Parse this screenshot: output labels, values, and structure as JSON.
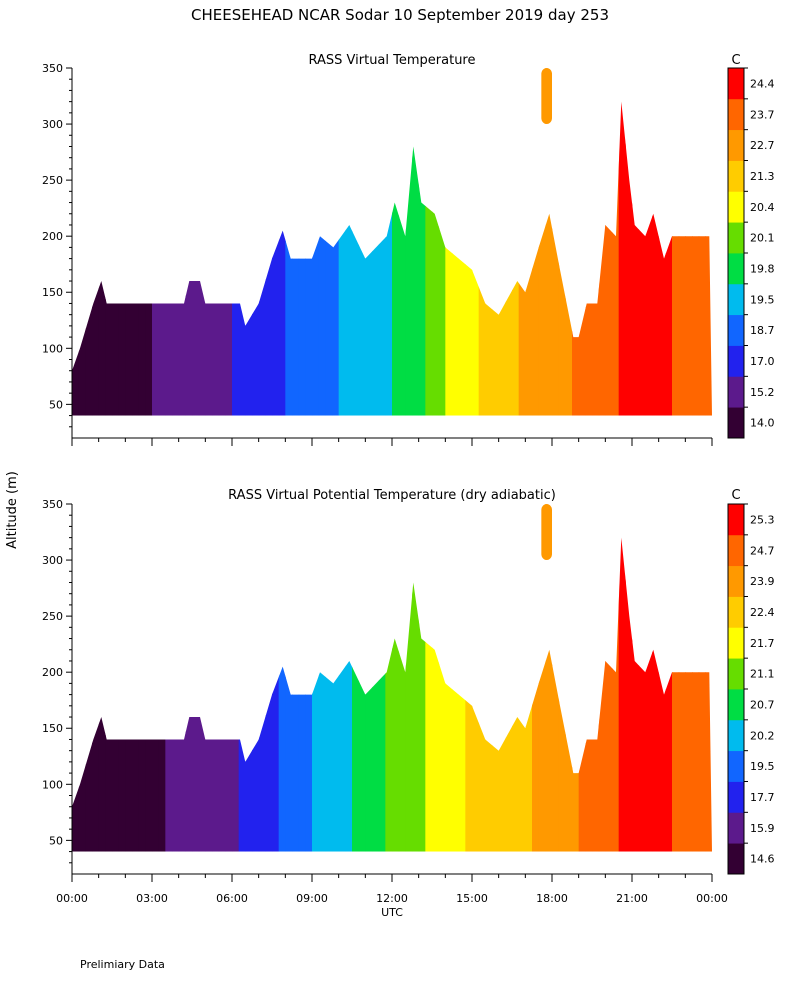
{
  "title": "CHEESEHEAD  NCAR Sodar  10 September 2019  day 253",
  "y_axis_label": "Altitude (m)",
  "footnote": "Prelimiary Data",
  "colors": [
    "#330033",
    "#5c1a8c",
    "#2222ee",
    "#1166ff",
    "#00bbee",
    "#00dd44",
    "#66dd00",
    "#ffff00",
    "#ffcc00",
    "#ff9900",
    "#ff6600",
    "#ff0000"
  ],
  "chart_data": [
    {
      "type": "heatmap",
      "title": "RASS Virtual Temperature",
      "xlabel": "UTC",
      "ylabel": "Altitude (m)",
      "colorbar_unit": "C",
      "colorbar_ticks": [
        14.0,
        15.2,
        17.0,
        18.7,
        19.5,
        19.8,
        20.1,
        20.4,
        21.3,
        22.7,
        23.7,
        24.4
      ],
      "colorbar_labels": [
        "14.0",
        "15.2",
        "17.0",
        "18.7",
        "19.5",
        "19.8",
        "20.1",
        "20.4",
        "21.3",
        "22.7",
        "23.7",
        "24.4"
      ],
      "x_ticks_hours": [
        0,
        3,
        6,
        9,
        12,
        15,
        18,
        21,
        24
      ],
      "y_ticks": [
        50,
        100,
        150,
        200,
        250,
        300,
        350
      ],
      "xlim_hours": [
        0,
        24
      ],
      "ylim": [
        20,
        350
      ],
      "lowest_gate_m": 40,
      "top_profile": [
        [
          0,
          80
        ],
        [
          0.3,
          100
        ],
        [
          0.8,
          140
        ],
        [
          1.1,
          160
        ],
        [
          1.3,
          140
        ],
        [
          4.2,
          140
        ],
        [
          4.4,
          160
        ],
        [
          4.8,
          160
        ],
        [
          5.0,
          140
        ],
        [
          6.3,
          140
        ],
        [
          6.5,
          120
        ],
        [
          7.0,
          140
        ],
        [
          7.5,
          180
        ],
        [
          7.9,
          205
        ],
        [
          8.2,
          180
        ],
        [
          9.0,
          180
        ],
        [
          9.3,
          200
        ],
        [
          9.8,
          190
        ],
        [
          10.4,
          210
        ],
        [
          11.0,
          180
        ],
        [
          11.8,
          200
        ],
        [
          12.1,
          230
        ],
        [
          12.5,
          200
        ],
        [
          12.8,
          280
        ],
        [
          13.1,
          230
        ],
        [
          13.6,
          220
        ],
        [
          14.0,
          190
        ],
        [
          14.5,
          180
        ],
        [
          15.0,
          170
        ],
        [
          15.5,
          140
        ],
        [
          16.0,
          130
        ],
        [
          16.7,
          160
        ],
        [
          17.0,
          150
        ],
        [
          17.5,
          190
        ],
        [
          17.9,
          220
        ],
        [
          18.3,
          170
        ],
        [
          18.8,
          110
        ],
        [
          19.0,
          110
        ],
        [
          19.3,
          140
        ],
        [
          19.7,
          140
        ],
        [
          20.0,
          210
        ],
        [
          20.4,
          200
        ],
        [
          20.6,
          320
        ],
        [
          20.9,
          250
        ],
        [
          21.1,
          210
        ],
        [
          21.5,
          200
        ],
        [
          21.8,
          220
        ],
        [
          22.2,
          180
        ],
        [
          22.5,
          200
        ],
        [
          23.2,
          200
        ],
        [
          23.9,
          200
        ],
        [
          24.0,
          40
        ]
      ],
      "top_blob": {
        "x_hours": [
          17.6,
          18.0
        ],
        "alt_m": [
          300,
          350
        ]
      },
      "temperature_profile": [
        [
          0,
          14.0
        ],
        [
          1.5,
          14.3
        ],
        [
          2.5,
          15.0
        ],
        [
          5.0,
          16.0
        ],
        [
          6.0,
          17.0
        ],
        [
          7.5,
          18.2
        ],
        [
          8.5,
          19.0
        ],
        [
          10.0,
          19.5
        ],
        [
          11.0,
          19.7
        ],
        [
          12.0,
          19.8
        ],
        [
          13.0,
          20.0
        ],
        [
          14.0,
          20.4
        ],
        [
          15.0,
          21.0
        ],
        [
          16.0,
          22.0
        ],
        [
          17.0,
          22.8
        ],
        [
          18.0,
          23.3
        ],
        [
          19.0,
          23.8
        ],
        [
          20.0,
          24.2
        ],
        [
          21.0,
          24.6
        ],
        [
          22.0,
          24.6
        ],
        [
          23.0,
          24.2
        ],
        [
          24.0,
          23.8
        ]
      ]
    },
    {
      "type": "heatmap",
      "title": "RASS Virtual Potential Temperature (dry adiabatic)",
      "xlabel": "UTC",
      "ylabel": "Altitude (m)",
      "colorbar_unit": "C",
      "colorbar_ticks": [
        14.6,
        15.9,
        17.7,
        19.5,
        20.2,
        20.7,
        21.1,
        21.7,
        22.4,
        23.9,
        24.7,
        25.3
      ],
      "colorbar_labels": [
        "14.6",
        "15.9",
        "17.7",
        "19.5",
        "20.2",
        "20.7",
        "21.1",
        "21.7",
        "22.4",
        "23.9",
        "24.7",
        "25.3"
      ],
      "x_ticks_hours": [
        0,
        3,
        6,
        9,
        12,
        15,
        18,
        21,
        24
      ],
      "x_tick_labels": [
        "00:00",
        "03:00",
        "06:00",
        "09:00",
        "12:00",
        "15:00",
        "18:00",
        "21:00",
        "00:00"
      ],
      "y_ticks": [
        50,
        100,
        150,
        200,
        250,
        300,
        350
      ],
      "xlim_hours": [
        0,
        24
      ],
      "ylim": [
        20,
        350
      ],
      "lowest_gate_m": 40,
      "top_profile": [
        [
          0,
          80
        ],
        [
          0.3,
          100
        ],
        [
          0.8,
          140
        ],
        [
          1.1,
          160
        ],
        [
          1.3,
          140
        ],
        [
          4.2,
          140
        ],
        [
          4.4,
          160
        ],
        [
          4.8,
          160
        ],
        [
          5.0,
          140
        ],
        [
          6.3,
          140
        ],
        [
          6.5,
          120
        ],
        [
          7.0,
          140
        ],
        [
          7.5,
          180
        ],
        [
          7.9,
          205
        ],
        [
          8.2,
          180
        ],
        [
          9.0,
          180
        ],
        [
          9.3,
          200
        ],
        [
          9.8,
          190
        ],
        [
          10.4,
          210
        ],
        [
          11.0,
          180
        ],
        [
          11.8,
          200
        ],
        [
          12.1,
          230
        ],
        [
          12.5,
          200
        ],
        [
          12.8,
          280
        ],
        [
          13.1,
          230
        ],
        [
          13.6,
          220
        ],
        [
          14.0,
          190
        ],
        [
          14.5,
          180
        ],
        [
          15.0,
          170
        ],
        [
          15.5,
          140
        ],
        [
          16.0,
          130
        ],
        [
          16.7,
          160
        ],
        [
          17.0,
          150
        ],
        [
          17.5,
          190
        ],
        [
          17.9,
          220
        ],
        [
          18.3,
          170
        ],
        [
          18.8,
          110
        ],
        [
          19.0,
          110
        ],
        [
          19.3,
          140
        ],
        [
          19.7,
          140
        ],
        [
          20.0,
          210
        ],
        [
          20.4,
          200
        ],
        [
          20.6,
          320
        ],
        [
          20.9,
          250
        ],
        [
          21.1,
          210
        ],
        [
          21.5,
          200
        ],
        [
          21.8,
          220
        ],
        [
          22.2,
          180
        ],
        [
          22.5,
          200
        ],
        [
          23.2,
          200
        ],
        [
          23.9,
          200
        ],
        [
          24.0,
          40
        ]
      ],
      "top_blob": {
        "x_hours": [
          17.6,
          18.0
        ],
        "alt_m": [
          300,
          350
        ]
      },
      "temperature_profile": [
        [
          0,
          14.6
        ],
        [
          1.5,
          14.9
        ],
        [
          2.5,
          15.5
        ],
        [
          5.0,
          16.5
        ],
        [
          6.0,
          17.5
        ],
        [
          7.5,
          19.2
        ],
        [
          8.5,
          20.0
        ],
        [
          10.0,
          20.5
        ],
        [
          11.0,
          20.9
        ],
        [
          12.0,
          21.2
        ],
        [
          13.0,
          21.6
        ],
        [
          14.0,
          22.0
        ],
        [
          15.0,
          22.5
        ],
        [
          16.0,
          23.2
        ],
        [
          17.0,
          23.8
        ],
        [
          18.0,
          24.2
        ],
        [
          19.0,
          24.7
        ],
        [
          20.0,
          25.1
        ],
        [
          21.0,
          25.5
        ],
        [
          22.0,
          25.5
        ],
        [
          23.0,
          25.1
        ],
        [
          24.0,
          24.7
        ]
      ]
    }
  ]
}
